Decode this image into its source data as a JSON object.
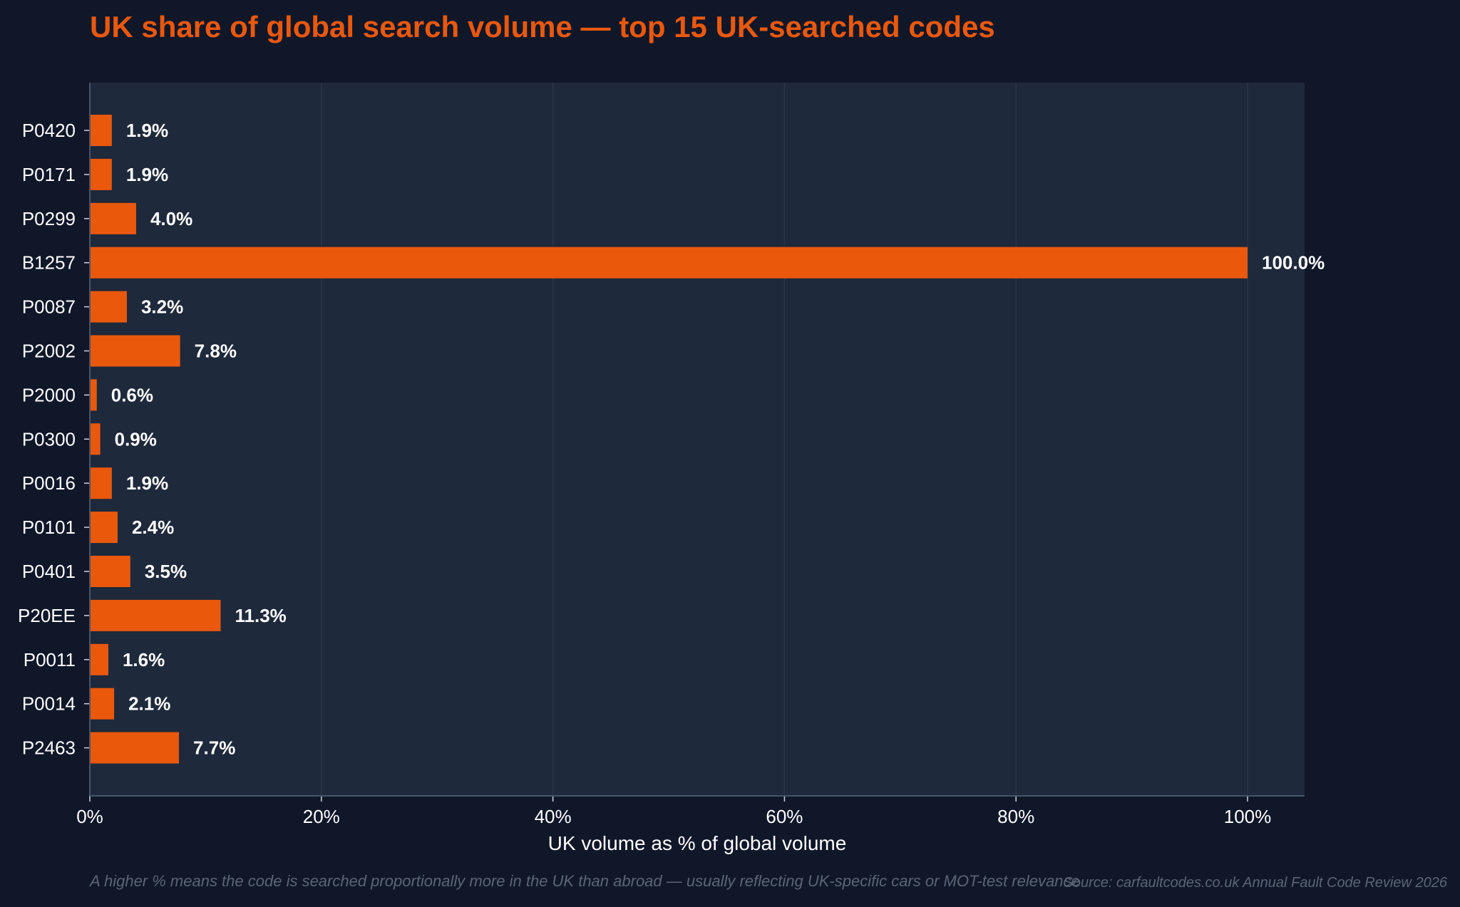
{
  "colors": {
    "background": "#0f1729",
    "plot_background": "#1e293b",
    "bar": "#ea580c",
    "title": "#ea580c",
    "text": "#ffffff",
    "muted": "#5b6576"
  },
  "chart_data": {
    "type": "bar",
    "orientation": "horizontal",
    "title": "UK share of global search volume — top 15 UK-searched codes",
    "xlabel": "UK volume as % of global volume",
    "ylabel": "",
    "xlim": [
      0,
      105
    ],
    "x_ticks": [
      0,
      20,
      40,
      60,
      80,
      100
    ],
    "x_tick_labels": [
      "0%",
      "20%",
      "40%",
      "60%",
      "80%",
      "100%"
    ],
    "grid": "vertical",
    "categories": [
      "P0420",
      "P0171",
      "P0299",
      "B1257",
      "P0087",
      "P2002",
      "P2000",
      "P0300",
      "P0016",
      "P0101",
      "P0401",
      "P20EE",
      "P0011",
      "P0014",
      "P2463"
    ],
    "values": [
      1.9,
      1.9,
      4.0,
      100.0,
      3.2,
      7.8,
      0.6,
      0.9,
      1.9,
      2.4,
      3.5,
      11.3,
      1.6,
      2.1,
      7.7
    ],
    "data_labels": [
      "1.9%",
      "1.9%",
      "4.0%",
      "100.0%",
      "3.2%",
      "7.8%",
      "0.6%",
      "0.9%",
      "1.9%",
      "2.4%",
      "3.5%",
      "11.3%",
      "1.6%",
      "2.1%",
      "7.7%"
    ]
  },
  "footer": {
    "note": "A higher % means the code is searched proportionally more in the UK than abroad — usually reflecting UK-specific cars or MOT-test relevance",
    "source": "Source: carfaultcodes.co.uk Annual Fault Code Review 2026"
  }
}
